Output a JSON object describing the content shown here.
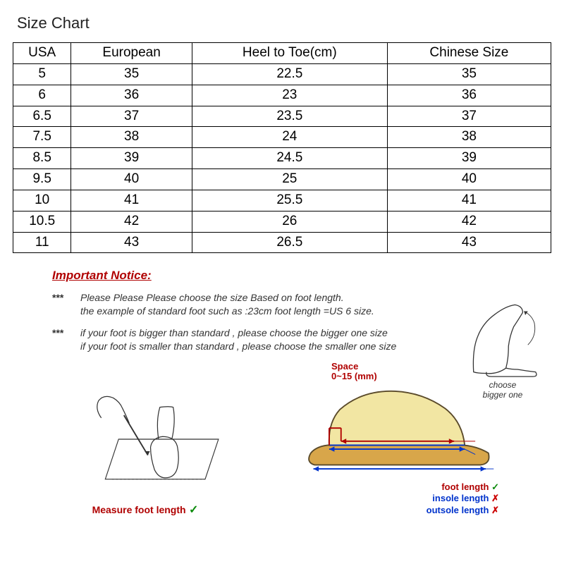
{
  "title": "Size Chart",
  "table": {
    "columns": [
      "USA",
      "European",
      "Heel to Toe(cm)",
      "Chinese Size"
    ],
    "rows": [
      [
        "5",
        "35",
        "22.5",
        "35"
      ],
      [
        "6",
        "36",
        "23",
        "36"
      ],
      [
        "6.5",
        "37",
        "23.5",
        "37"
      ],
      [
        "7.5",
        "38",
        "24",
        "38"
      ],
      [
        "8.5",
        "39",
        "24.5",
        "39"
      ],
      [
        "9.5",
        "40",
        "25",
        "40"
      ],
      [
        "10",
        "41",
        "25.5",
        "41"
      ],
      [
        "10.5",
        "42",
        "26",
        "42"
      ],
      [
        "11",
        "43",
        "26.5",
        "43"
      ]
    ],
    "border_color": "#000000",
    "font_size": 19
  },
  "notice": {
    "heading": "Important Notice:",
    "heading_color": "#b00000",
    "star_marker": "***",
    "items": [
      {
        "line1": "Please Please Please choose the size Based on foot length.",
        "line2": "the example of standard foot such as :23cm foot length =US 6 size."
      },
      {
        "line1": "if your foot is bigger than standard , please choose the bigger one size",
        "line2": "if your foot is smaller than standard , please choose the smaller one size"
      }
    ],
    "side_foot_caption_l1": "choose",
    "side_foot_caption_l2": "bigger one"
  },
  "diagram_left": {
    "caption": "Measure foot length",
    "check": "✓",
    "colors": {
      "caption": "#b00000",
      "check": "#0a8a0a"
    }
  },
  "diagram_right": {
    "space_l1": "Space",
    "space_l2": "0~15 (mm)",
    "lines": [
      {
        "label": "foot length",
        "mark": "✓",
        "color": "#b00000",
        "mark_color": "#0a8a0a"
      },
      {
        "label": "insole length",
        "mark": "✗",
        "color": "#0033cc",
        "mark_color": "#c00000"
      },
      {
        "label": "outsole length",
        "mark": "✗",
        "color": "#0033cc",
        "mark_color": "#c00000"
      }
    ],
    "shoe_colors": {
      "upper": "#f2e6a3",
      "sole": "#d8a64a",
      "outline": "#5a4a2a"
    }
  },
  "background_color": "#ffffff"
}
